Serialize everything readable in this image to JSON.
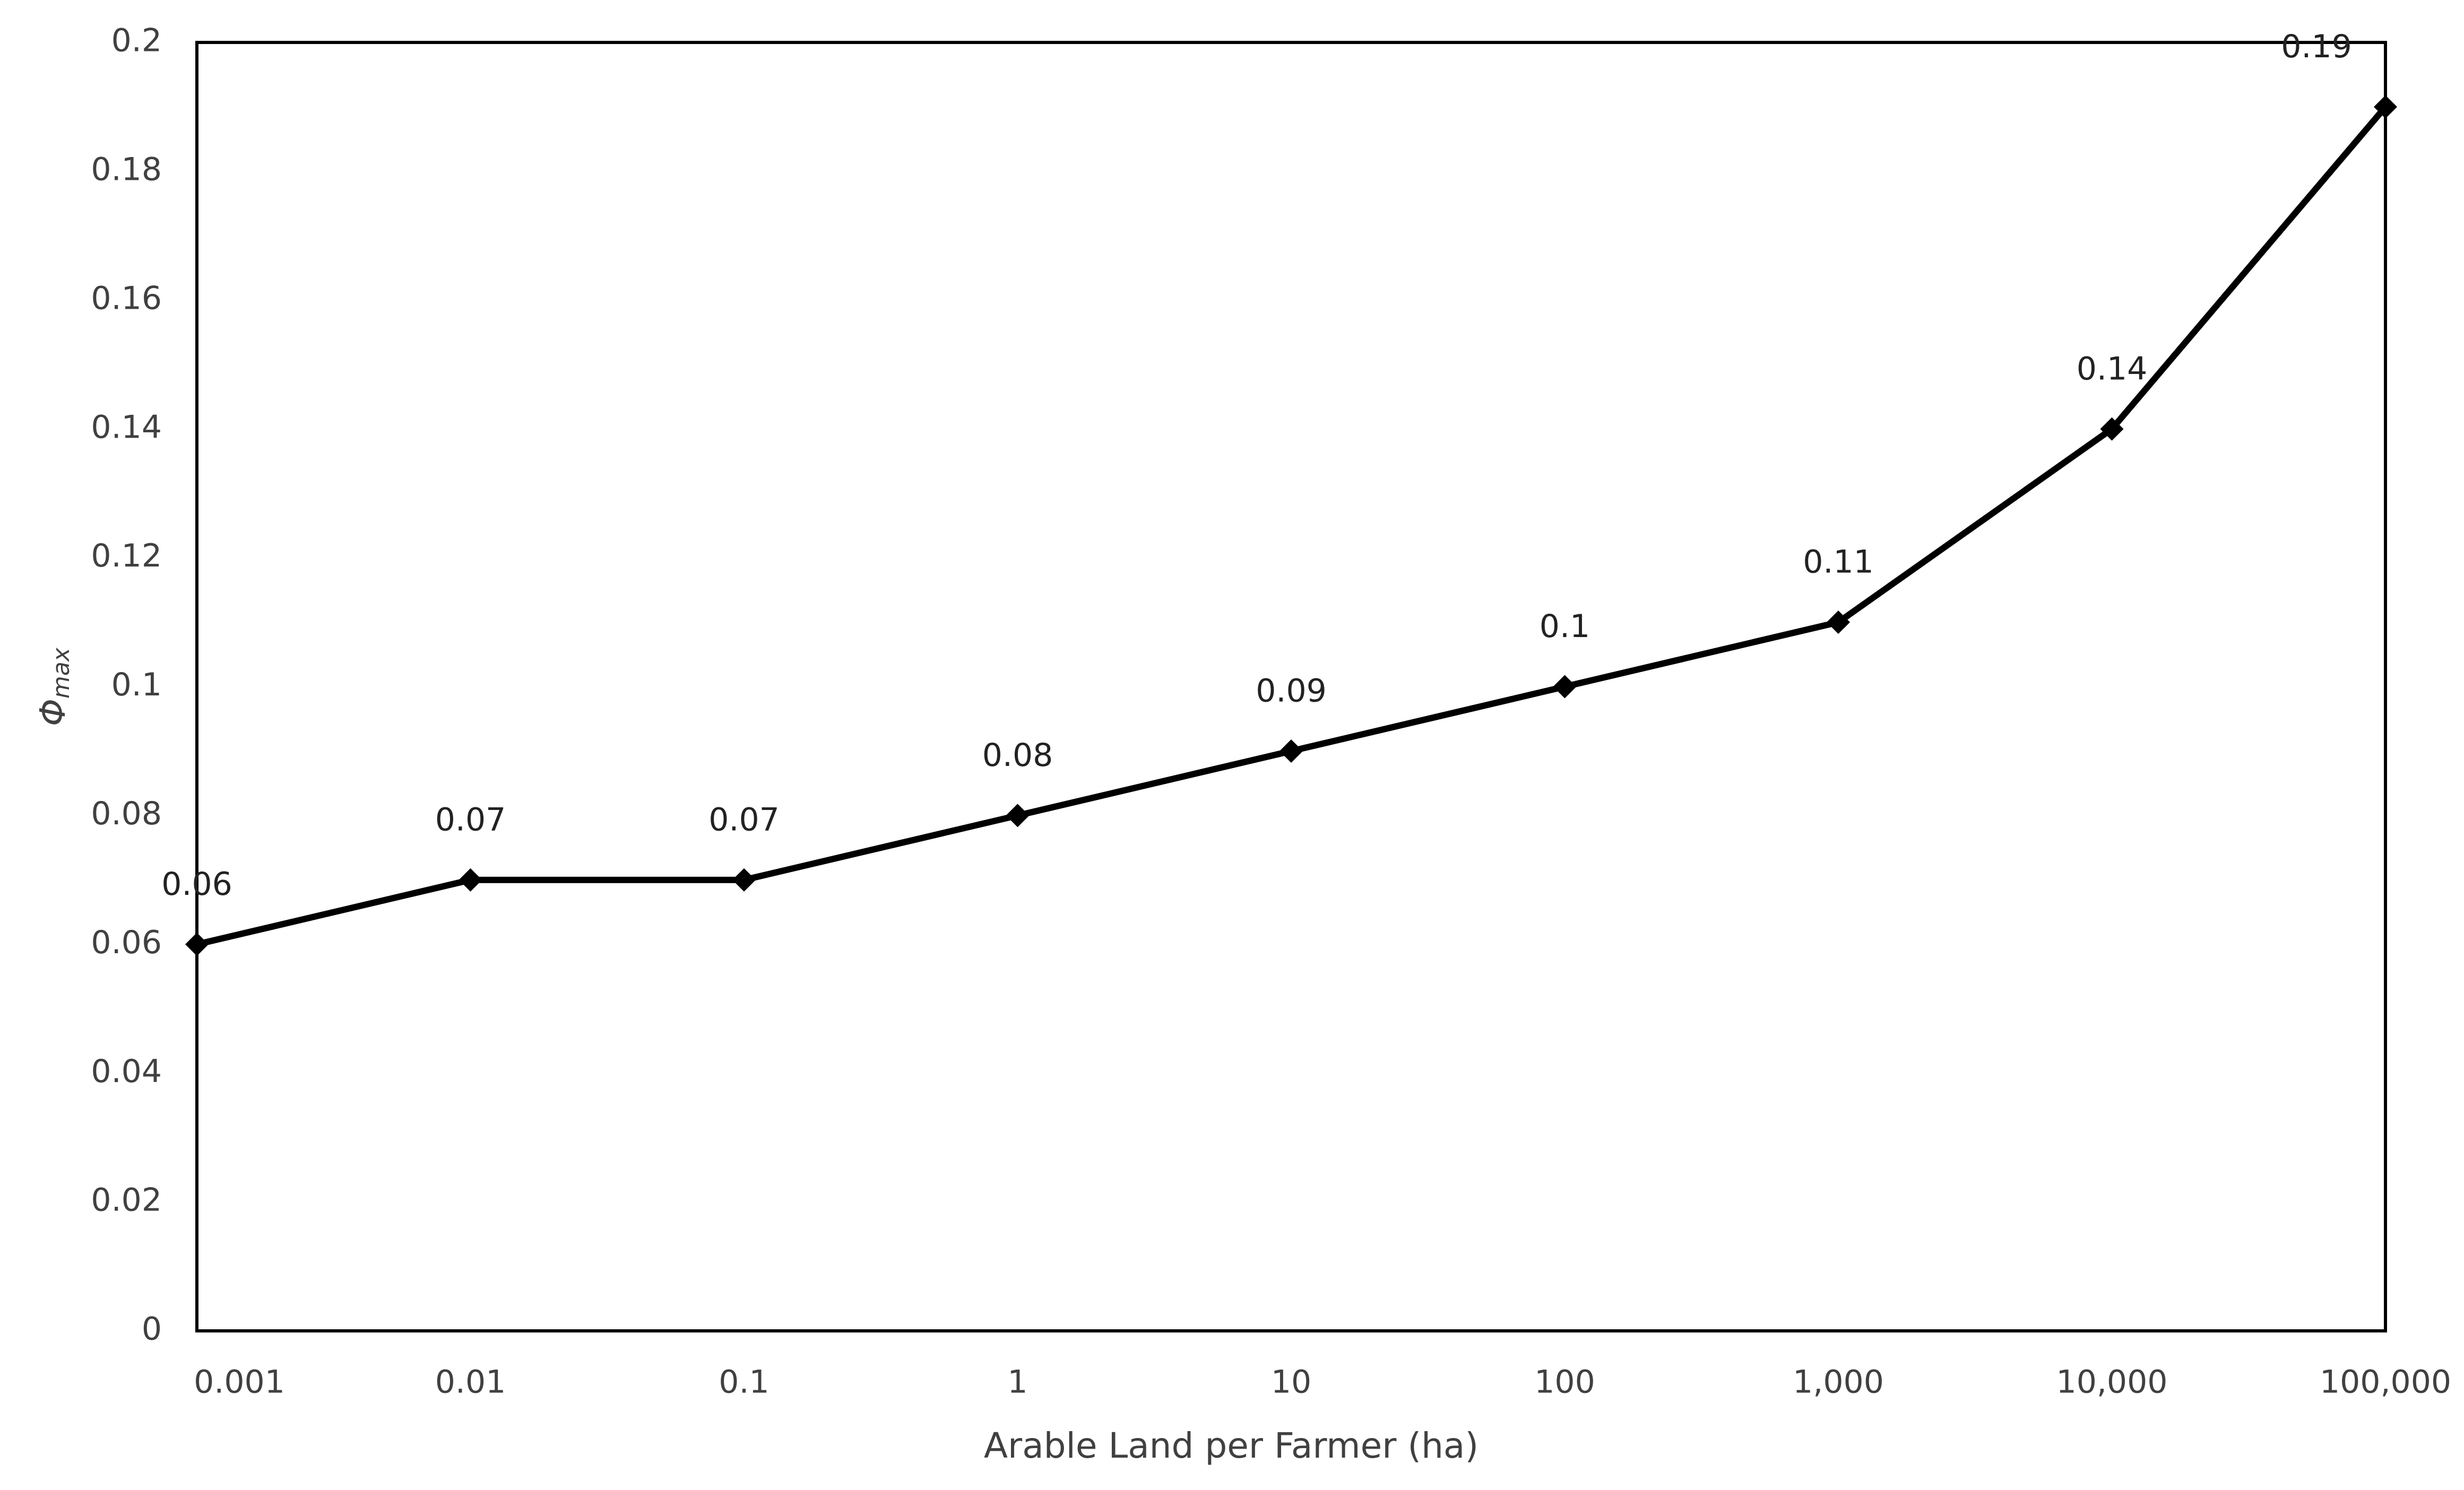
{
  "chart_data": {
    "type": "line",
    "xlabel": "Arable Land per Farmer (ha)",
    "ylabel": "Φ",
    "ylabel_subscript": "max",
    "x": [
      0.001,
      0.01,
      0.1,
      1,
      10,
      100,
      1000,
      10000,
      100000
    ],
    "series": [
      {
        "name": "Φmax",
        "color": "#000000",
        "values": [
          0.06,
          0.07,
          0.07,
          0.08,
          0.09,
          0.1,
          0.11,
          0.14,
          0.19
        ]
      }
    ],
    "xscale": "log",
    "xlim": [
      0.001,
      100000
    ],
    "xticks": [
      0.001,
      0.01,
      0.1,
      1,
      10,
      100,
      {
        "value": 1000,
        "label": "1,000"
      },
      {
        "value": 10000,
        "label": "10,000"
      },
      {
        "value": 100000,
        "label": "100,000"
      }
    ],
    "ylim": [
      0,
      0.2
    ],
    "yticks": [
      0,
      0.02,
      0.04,
      0.06,
      0.08,
      0.1,
      0.12,
      0.14,
      0.16,
      0.18,
      0.2
    ],
    "grid": false
  }
}
